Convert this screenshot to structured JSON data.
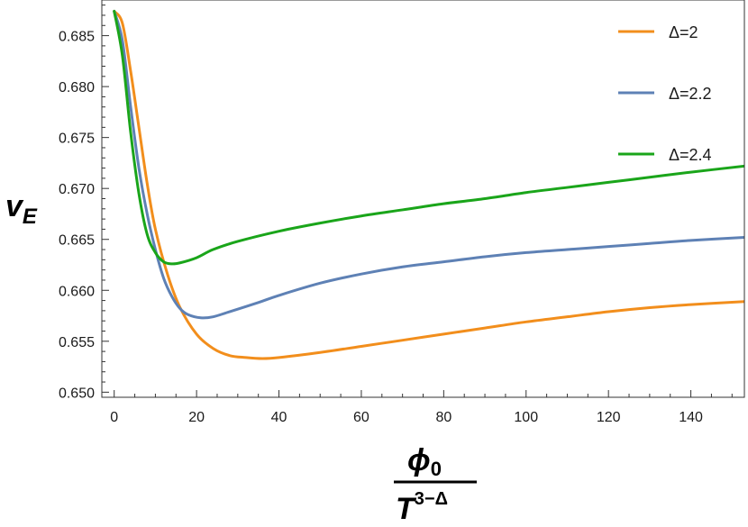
{
  "chart_data": {
    "type": "line",
    "ylabel": {
      "main": "v",
      "sub": "E"
    },
    "xlabel": {
      "num_main": "ϕ",
      "num_sub": "0",
      "den_main": "T",
      "den_sup": "3−Δ"
    },
    "xlim": [
      -3,
      153
    ],
    "ylim": [
      0.6495,
      0.6885
    ],
    "x_ticks": [
      0,
      20,
      40,
      60,
      80,
      100,
      120,
      140
    ],
    "x_tick_labels": [
      "0",
      "20",
      "40",
      "60",
      "80",
      "100",
      "120",
      "140"
    ],
    "y_ticks": [
      0.65,
      0.655,
      0.66,
      0.665,
      0.67,
      0.675,
      0.68,
      0.685
    ],
    "y_tick_labels": [
      "0.650",
      "0.655",
      "0.660",
      "0.665",
      "0.670",
      "0.675",
      "0.680",
      "0.685"
    ],
    "legend_position": "top-right",
    "series": [
      {
        "name": "Δ=2",
        "color": "#f28e1c",
        "points": [
          [
            0,
            0.6874
          ],
          [
            2,
            0.6862
          ],
          [
            4,
            0.6815
          ],
          [
            6,
            0.676
          ],
          [
            8,
            0.6705
          ],
          [
            10,
            0.666
          ],
          [
            13,
            0.6615
          ],
          [
            16,
            0.6583
          ],
          [
            20,
            0.6557
          ],
          [
            24,
            0.6543
          ],
          [
            28,
            0.6536
          ],
          [
            32,
            0.6534
          ],
          [
            36,
            0.6533
          ],
          [
            40,
            0.6534
          ],
          [
            50,
            0.6539
          ],
          [
            60,
            0.6545
          ],
          [
            70,
            0.6551
          ],
          [
            80,
            0.6557
          ],
          [
            90,
            0.6563
          ],
          [
            100,
            0.6569
          ],
          [
            110,
            0.6574
          ],
          [
            120,
            0.6579
          ],
          [
            130,
            0.6583
          ],
          [
            140,
            0.6586
          ],
          [
            153,
            0.6589
          ]
        ]
      },
      {
        "name": "Δ=2.2",
        "color": "#5e81b5",
        "points": [
          [
            0,
            0.6874
          ],
          [
            2,
            0.6845
          ],
          [
            4,
            0.678
          ],
          [
            6,
            0.672
          ],
          [
            8,
            0.6675
          ],
          [
            10,
            0.664
          ],
          [
            12,
            0.6612
          ],
          [
            14,
            0.6594
          ],
          [
            16,
            0.6582
          ],
          [
            18,
            0.6576
          ],
          [
            21,
            0.6573
          ],
          [
            24,
            0.6574
          ],
          [
            28,
            0.6579
          ],
          [
            35,
            0.6588
          ],
          [
            40,
            0.6595
          ],
          [
            50,
            0.6607
          ],
          [
            60,
            0.6616
          ],
          [
            70,
            0.6623
          ],
          [
            80,
            0.6628
          ],
          [
            90,
            0.6633
          ],
          [
            100,
            0.6637
          ],
          [
            110,
            0.664
          ],
          [
            120,
            0.6643
          ],
          [
            130,
            0.6646
          ],
          [
            140,
            0.6649
          ],
          [
            153,
            0.6652
          ]
        ]
      },
      {
        "name": "Δ=2.4",
        "color": "#1aa51a",
        "points": [
          [
            0,
            0.6874
          ],
          [
            2,
            0.683
          ],
          [
            4,
            0.6755
          ],
          [
            6,
            0.6695
          ],
          [
            8,
            0.6655
          ],
          [
            10,
            0.6637
          ],
          [
            12,
            0.6628
          ],
          [
            14,
            0.6626
          ],
          [
            16,
            0.6627
          ],
          [
            20,
            0.6632
          ],
          [
            24,
            0.664
          ],
          [
            30,
            0.6648
          ],
          [
            40,
            0.6658
          ],
          [
            50,
            0.6666
          ],
          [
            60,
            0.6673
          ],
          [
            70,
            0.6679
          ],
          [
            80,
            0.6685
          ],
          [
            90,
            0.669
          ],
          [
            100,
            0.6696
          ],
          [
            110,
            0.6701
          ],
          [
            120,
            0.6706
          ],
          [
            130,
            0.6711
          ],
          [
            140,
            0.6716
          ],
          [
            153,
            0.6722
          ]
        ]
      }
    ]
  }
}
